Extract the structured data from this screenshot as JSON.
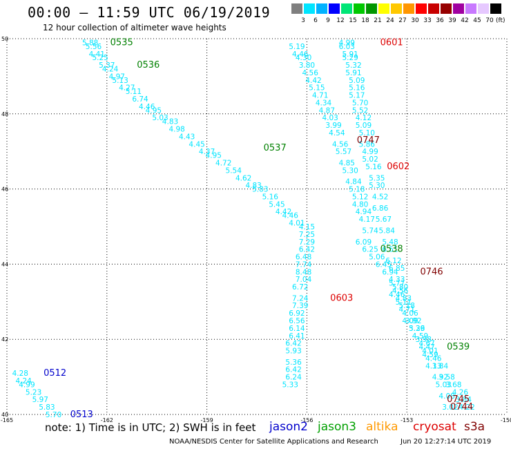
{
  "header": {
    "title": "00:00 – 11:59 UTC 06/19/2019",
    "subtitle": "12 hour collection of altimeter wave heights"
  },
  "colorbar": {
    "unit": "(ft)",
    "items": [
      {
        "label": "3",
        "color": "#7f7f7f"
      },
      {
        "label": "6",
        "color": "#00e5ff"
      },
      {
        "label": "9",
        "color": "#00b2ff"
      },
      {
        "label": "12",
        "color": "#0000ff"
      },
      {
        "label": "15",
        "color": "#00e676"
      },
      {
        "label": "18",
        "color": "#00c800"
      },
      {
        "label": "21",
        "color": "#009600"
      },
      {
        "label": "24",
        "color": "#ffff00"
      },
      {
        "label": "27",
        "color": "#ffc800"
      },
      {
        "label": "30",
        "color": "#ff9600"
      },
      {
        "label": "33",
        "color": "#ff0000"
      },
      {
        "label": "36",
        "color": "#c80000"
      },
      {
        "label": "39",
        "color": "#960000"
      },
      {
        "label": "42",
        "color": "#a000a0"
      },
      {
        "label": "45",
        "color": "#c878ff"
      },
      {
        "label": "70",
        "color": "#e6c8ff"
      },
      {
        "label": "",
        "color": "#000000"
      }
    ]
  },
  "footer": {
    "note": "note: 1) Time is in UTC; 2) SWH is in feet",
    "satellites": [
      {
        "name": "jason2",
        "color": "#0000cc"
      },
      {
        "name": "jason3",
        "color": "#00a000"
      },
      {
        "name": "altika",
        "color": "#ff9900"
      },
      {
        "name": "cryosat",
        "color": "#dd0000"
      },
      {
        "name": "s3a",
        "color": "#800000"
      }
    ],
    "credit": "NOAA/NESDIS Center for Satellite Applications and Research",
    "timestamp": "Jun 20 12:27:14 UTC 2019"
  },
  "chart_data": {
    "type": "scatter",
    "title": "00:00 – 11:59 UTC 06/19/2019",
    "xlabel": "",
    "ylabel": "",
    "xlim": [
      -165,
      -150
    ],
    "ylim": [
      40,
      50
    ],
    "x_ticks": [
      "-165",
      "-162",
      "-159",
      "-156",
      "-153",
      "-150"
    ],
    "y_ticks": [
      "40",
      "42",
      "44",
      "46",
      "48",
      "50"
    ],
    "grid": true,
    "point_color": "#00e5ff",
    "tracks": [
      {
        "points": [
          [
            -162.5,
            49.9,
            "5.88"
          ],
          [
            -162.4,
            49.8,
            "5.56"
          ],
          [
            -162.3,
            49.6,
            "4.41"
          ],
          [
            -162.2,
            49.5,
            "5.25"
          ],
          [
            -162.0,
            49.3,
            "5.37"
          ],
          [
            -161.9,
            49.2,
            "4.24"
          ],
          [
            -161.7,
            49.0,
            "4.97"
          ],
          [
            -161.6,
            48.9,
            "5.13"
          ],
          [
            -161.4,
            48.7,
            "4.27"
          ],
          [
            -161.2,
            48.6,
            "5.11"
          ],
          [
            -161.0,
            48.4,
            "6.74"
          ],
          [
            -160.8,
            48.2,
            "4.46"
          ],
          [
            -160.6,
            48.1,
            "4.95"
          ],
          [
            -160.4,
            47.9,
            "5.03"
          ],
          [
            -160.1,
            47.8,
            "4.83"
          ],
          [
            -159.9,
            47.6,
            "4.98"
          ],
          [
            -159.6,
            47.4,
            "4.43"
          ],
          [
            -159.3,
            47.2,
            "4.45"
          ],
          [
            -159.0,
            47.0,
            "4.37"
          ],
          [
            -158.8,
            46.9,
            "4.95"
          ],
          [
            -158.5,
            46.7,
            "4.72"
          ],
          [
            -158.2,
            46.5,
            "5.54"
          ],
          [
            -157.9,
            46.3,
            "4.62"
          ],
          [
            -157.6,
            46.1,
            "4.83"
          ],
          [
            -157.4,
            46.0,
            "5.83"
          ],
          [
            -157.1,
            45.8,
            "5.16"
          ],
          [
            -156.9,
            45.6,
            "5.45"
          ],
          [
            -156.7,
            45.4,
            "4.42"
          ],
          [
            -156.5,
            45.3,
            "4.46"
          ],
          [
            -156.3,
            45.1,
            "4.01"
          ],
          [
            -156.0,
            45.0,
            "4.15"
          ]
        ]
      },
      {
        "points": [
          [
            -156.3,
            49.8,
            "5.19"
          ],
          [
            -156.2,
            49.6,
            "4.46"
          ],
          [
            -156.1,
            49.5,
            "4.30"
          ],
          [
            -156.0,
            49.3,
            "3.80"
          ],
          [
            -155.9,
            49.1,
            "4.56"
          ],
          [
            -155.8,
            48.9,
            "4.42"
          ],
          [
            -155.7,
            48.7,
            "5.15"
          ],
          [
            -155.6,
            48.5,
            "4.71"
          ],
          [
            -155.5,
            48.3,
            "4.34"
          ],
          [
            -155.4,
            48.1,
            "4.87"
          ],
          [
            -155.3,
            47.9,
            "4.03"
          ],
          [
            -155.2,
            47.7,
            "3.99"
          ],
          [
            -155.1,
            47.5,
            "4.54"
          ],
          [
            -155.0,
            47.2,
            "4.56"
          ],
          [
            -154.9,
            47.0,
            "5.57"
          ],
          [
            -154.8,
            46.7,
            "4.85"
          ],
          [
            -154.7,
            46.5,
            "5.30"
          ],
          [
            -154.6,
            46.2,
            "4.84"
          ],
          [
            -154.5,
            46.0,
            "5.18"
          ],
          [
            -154.4,
            45.8,
            "5.12"
          ],
          [
            -154.4,
            45.6,
            "4.80"
          ],
          [
            -154.3,
            45.4,
            "4.94"
          ],
          [
            -154.2,
            45.2,
            "4.17"
          ],
          [
            -154.1,
            44.9,
            "5.74"
          ]
        ]
      },
      {
        "points": [
          [
            -154.8,
            49.9,
            "4.99"
          ],
          [
            -154.8,
            49.8,
            "6.03"
          ],
          [
            -154.7,
            49.6,
            "5.91"
          ],
          [
            -154.7,
            49.5,
            "5.29"
          ],
          [
            -154.6,
            49.3,
            "5.32"
          ],
          [
            -154.6,
            49.1,
            "5.91"
          ],
          [
            -154.5,
            48.9,
            "5.09"
          ],
          [
            -154.5,
            48.7,
            "5.16"
          ],
          [
            -154.5,
            48.5,
            "5.17"
          ],
          [
            -154.4,
            48.3,
            "5.70"
          ],
          [
            -154.4,
            48.1,
            "5.52"
          ],
          [
            -154.3,
            47.9,
            "4.12"
          ],
          [
            -154.3,
            47.7,
            "5.09"
          ],
          [
            -154.2,
            47.5,
            "5.10"
          ],
          [
            -154.2,
            47.2,
            "5.86"
          ],
          [
            -154.1,
            47.0,
            "4.99"
          ],
          [
            -154.1,
            46.8,
            "5.02"
          ],
          [
            -154.0,
            46.6,
            "5.16"
          ],
          [
            -153.9,
            46.3,
            "5.35"
          ],
          [
            -153.9,
            46.1,
            "5.30"
          ],
          [
            -153.8,
            45.8,
            "4.52"
          ],
          [
            -153.8,
            45.5,
            "6.86"
          ],
          [
            -153.7,
            45.2,
            "5.67"
          ],
          [
            -153.6,
            44.9,
            "5.84"
          ],
          [
            -153.5,
            44.6,
            "5.48"
          ],
          [
            -153.5,
            44.4,
            "6.51"
          ],
          [
            -153.4,
            44.1,
            "6.12"
          ],
          [
            -153.3,
            43.9,
            "6.85"
          ],
          [
            -153.3,
            43.6,
            "4.33"
          ],
          [
            -153.2,
            43.4,
            "5.80"
          ]
        ]
      },
      {
        "points": [
          [
            -156.0,
            44.8,
            "7.25"
          ],
          [
            -156.0,
            44.6,
            "7.29"
          ],
          [
            -156.0,
            44.4,
            "6.42"
          ],
          [
            -156.1,
            44.2,
            "6.48"
          ],
          [
            -156.1,
            44.0,
            "7.74"
          ],
          [
            -156.1,
            43.8,
            "8.48"
          ],
          [
            -156.1,
            43.6,
            "7.04"
          ],
          [
            -156.2,
            43.4,
            "6.72"
          ],
          [
            -156.2,
            43.1,
            "7.24"
          ],
          [
            -156.2,
            42.9,
            "7.39"
          ],
          [
            -156.3,
            42.7,
            "6.92"
          ],
          [
            -156.3,
            42.5,
            "6.56"
          ],
          [
            -156.3,
            42.3,
            "6.14"
          ],
          [
            -156.3,
            42.1,
            "6.41"
          ],
          [
            -156.4,
            41.9,
            "6.42"
          ],
          [
            -156.4,
            41.7,
            "5.93"
          ],
          [
            -156.4,
            41.4,
            "5.36"
          ],
          [
            -156.4,
            41.2,
            "6.42"
          ],
          [
            -156.4,
            41.0,
            "6.24"
          ],
          [
            -156.5,
            40.8,
            "5.33"
          ]
        ]
      },
      {
        "points": [
          [
            -154.3,
            44.6,
            "6.09"
          ],
          [
            -154.1,
            44.4,
            "6.25"
          ],
          [
            -153.9,
            44.2,
            "5.06"
          ],
          [
            -153.7,
            44.0,
            "6.45"
          ],
          [
            -153.5,
            43.8,
            "6.94"
          ],
          [
            -153.3,
            43.5,
            "5.77"
          ],
          [
            -153.2,
            43.3,
            "4.56"
          ],
          [
            -153.1,
            43.1,
            "4.83"
          ],
          [
            -153.0,
            42.9,
            "5.18"
          ],
          [
            -152.9,
            42.7,
            "4.06"
          ],
          [
            -152.8,
            42.5,
            "3.92"
          ],
          [
            -152.7,
            42.3,
            "3.26"
          ],
          [
            -152.5,
            42.0,
            "3.98"
          ],
          [
            -152.4,
            41.8,
            "4.47"
          ],
          [
            -152.3,
            41.6,
            "4.59"
          ],
          [
            -152.2,
            41.3,
            "4.13"
          ],
          [
            -152.0,
            41.0,
            "4.92"
          ],
          [
            -151.9,
            40.8,
            "5.03"
          ],
          [
            -151.8,
            40.5,
            "4.08"
          ],
          [
            -151.7,
            40.2,
            "3.02"
          ]
        ]
      },
      {
        "points": [
          [
            -153.3,
            43.2,
            "4.46"
          ],
          [
            -153.1,
            43.0,
            "5.11"
          ],
          [
            -153.0,
            42.8,
            "4.71"
          ],
          [
            -152.9,
            42.5,
            "4.09"
          ],
          [
            -152.7,
            42.3,
            "5.39"
          ],
          [
            -152.6,
            42.1,
            "4.59"
          ],
          [
            -152.4,
            41.9,
            "4.67"
          ],
          [
            -152.3,
            41.7,
            "4.01"
          ],
          [
            -152.2,
            41.5,
            "4.46"
          ],
          [
            -152.0,
            41.3,
            "3.84"
          ],
          [
            -151.8,
            41.0,
            "3.58"
          ],
          [
            -151.6,
            40.8,
            "3.68"
          ],
          [
            -151.4,
            40.6,
            "4.26"
          ],
          [
            -151.3,
            40.4,
            "3.84"
          ],
          [
            -151.2,
            40.2,
            "4.22"
          ]
        ]
      },
      {
        "points": [
          [
            -164.6,
            41.1,
            "4.28"
          ],
          [
            -164.5,
            40.9,
            "4.24"
          ],
          [
            -164.4,
            40.8,
            "4.99"
          ],
          [
            -164.2,
            40.6,
            "5.23"
          ],
          [
            -164.0,
            40.4,
            "5.97"
          ],
          [
            -163.8,
            40.2,
            "5.83"
          ],
          [
            -163.6,
            40.0,
            "5.70"
          ]
        ]
      }
    ],
    "annotations": [
      {
        "text": "0535",
        "x": -161.9,
        "y": 49.9,
        "color": "#008000"
      },
      {
        "text": "0536",
        "x": -161.1,
        "y": 49.3,
        "color": "#008000"
      },
      {
        "text": "0601",
        "x": -153.8,
        "y": 49.9,
        "color": "#dd0000"
      },
      {
        "text": "0537",
        "x": -157.3,
        "y": 47.1,
        "color": "#008000"
      },
      {
        "text": "0747",
        "x": -154.5,
        "y": 47.3,
        "color": "#800000"
      },
      {
        "text": "0602",
        "x": -153.6,
        "y": 46.6,
        "color": "#dd0000"
      },
      {
        "text": "0538",
        "x": -153.8,
        "y": 44.4,
        "color": "#008000"
      },
      {
        "text": "0746",
        "x": -152.6,
        "y": 43.8,
        "color": "#800000"
      },
      {
        "text": "0603",
        "x": -155.3,
        "y": 43.1,
        "color": "#dd0000"
      },
      {
        "text": "0539",
        "x": -151.8,
        "y": 41.8,
        "color": "#008000"
      },
      {
        "text": "0512",
        "x": -163.9,
        "y": 41.1,
        "color": "#0000cc"
      },
      {
        "text": "0513",
        "x": -163.1,
        "y": 40.0,
        "color": "#0000cc"
      },
      {
        "text": "0745",
        "x": -151.8,
        "y": 40.4,
        "color": "#800000"
      },
      {
        "text": "0744",
        "x": -151.7,
        "y": 40.2,
        "color": "#800000"
      }
    ]
  }
}
